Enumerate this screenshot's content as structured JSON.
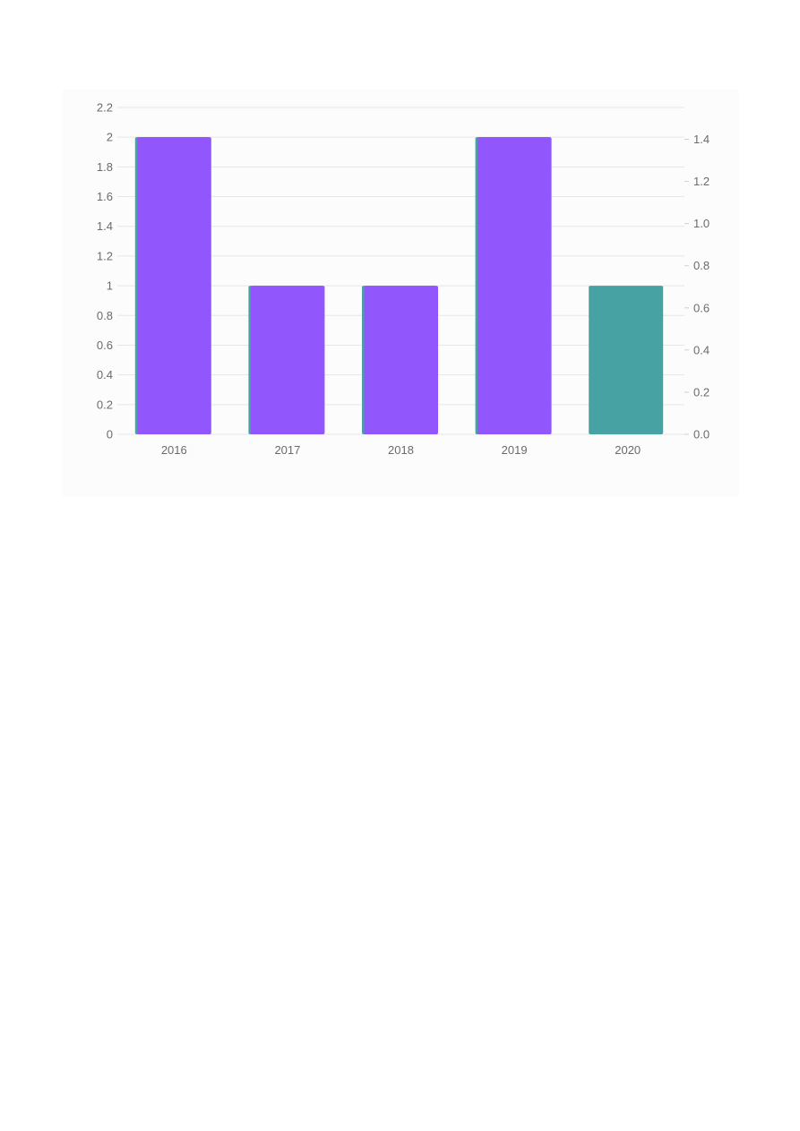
{
  "chart_data": {
    "type": "bar",
    "categories": [
      "2016",
      "2017",
      "2018",
      "2019",
      "2020"
    ],
    "series": [
      {
        "values": [
          2,
          1,
          1,
          2,
          1
        ],
        "color": "#47a3a3",
        "axis": "left"
      },
      {
        "values": [
          1.41,
          0.705,
          0.705,
          1.41,
          null
        ],
        "color": "#9157fd",
        "axis": "right"
      }
    ],
    "y_left": {
      "ylim": [
        0,
        2.2
      ],
      "ticks": [
        0,
        0.2,
        0.4,
        0.6,
        0.8,
        1,
        1.2,
        1.4,
        1.6,
        1.8,
        2,
        2.2
      ],
      "tick_labels": [
        "0",
        "0.2",
        "0.4",
        "0.6",
        "0.8",
        "1",
        "1.2",
        "1.4",
        "1.6",
        "1.8",
        "2",
        "2.2"
      ]
    },
    "y_right": {
      "ylim": [
        0,
        1.41
      ],
      "ticks": [
        0,
        0.2,
        0.4,
        0.6,
        0.8,
        1.0,
        1.2,
        1.4
      ],
      "tick_labels": [
        "0.0",
        "0.2",
        "0.4",
        "0.6",
        "0.8",
        "1.0",
        "1.2",
        "1.4"
      ]
    },
    "grid": true,
    "legend": "none",
    "title": "",
    "xlabel": "",
    "ylabel": ""
  }
}
